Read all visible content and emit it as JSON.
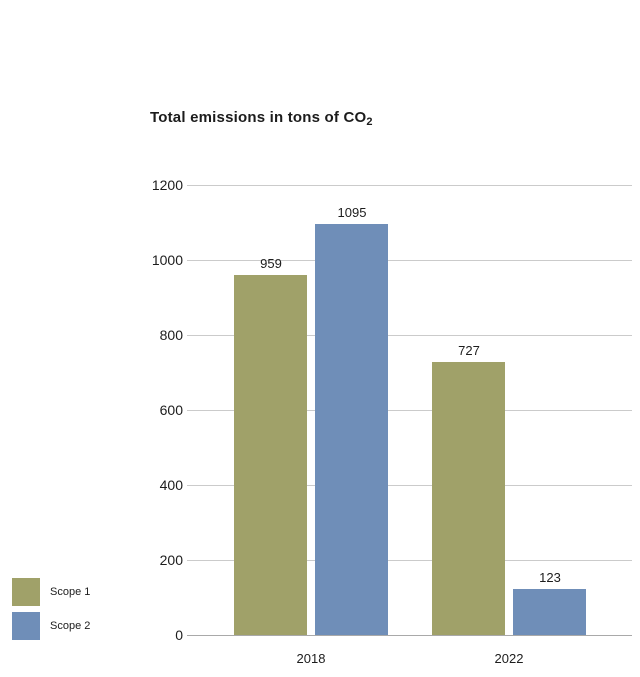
{
  "title": {
    "text": "Total emissions in tons of CO",
    "subscript": "2"
  },
  "chart_data": {
    "type": "bar",
    "title": "Total emissions in tons of CO2",
    "categories": [
      "2018",
      "2022"
    ],
    "series": [
      {
        "name": "Scope 1",
        "color": "#a0a169",
        "values": [
          959,
          727
        ]
      },
      {
        "name": "Scope 2",
        "color": "#6f8eb8",
        "values": [
          1095,
          123
        ]
      }
    ],
    "value_labels": [
      [
        "959",
        "727"
      ],
      [
        "1095",
        "123"
      ]
    ],
    "ylim": [
      0,
      1200
    ],
    "yticks": [
      0,
      200,
      400,
      600,
      800,
      1000,
      1200
    ],
    "grid": true,
    "legend_position": "bottom-left",
    "legend": [
      {
        "label": "Scope 1",
        "color": "#a0a169"
      },
      {
        "label": "Scope 2",
        "color": "#6f8eb8"
      }
    ]
  },
  "colors": {
    "background": "#ffffff",
    "gridline": "#cbcbcb",
    "axis_line": "#a9a9a9",
    "text": "#1d1d1d"
  }
}
